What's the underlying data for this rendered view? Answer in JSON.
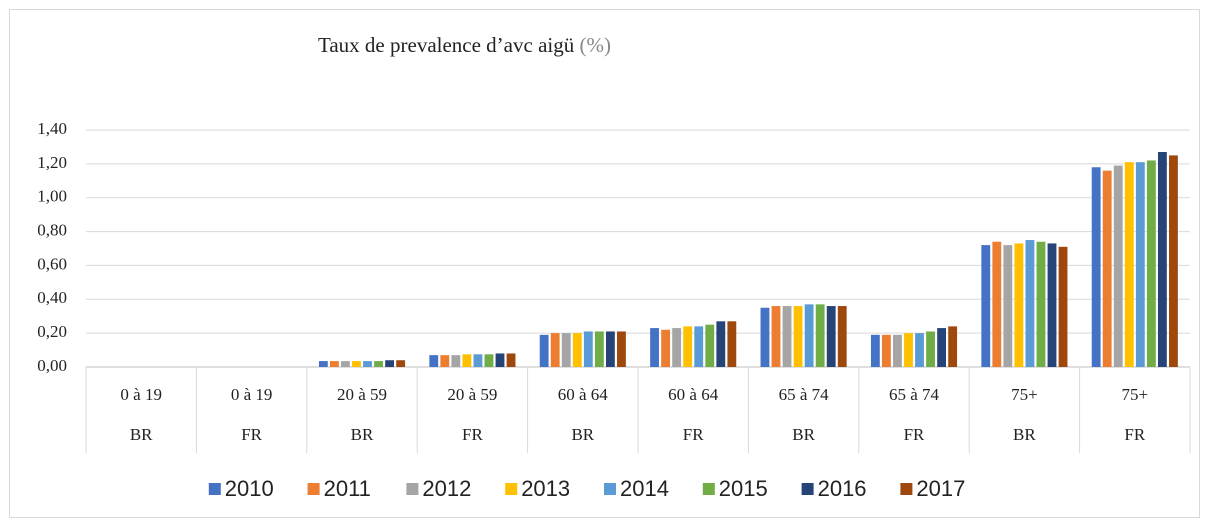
{
  "chart_data": {
    "type": "bar",
    "title": "Taux de prevalence d’avc aigü",
    "title_unit": "(%)",
    "categories": [
      "0 à 19",
      "0 à 19",
      "20 à 59",
      "20 à 59",
      "60 à 64",
      "60 à 64",
      "65 à 74",
      "65 à 74",
      "75+",
      "75+"
    ],
    "subcategories": [
      "BR",
      "FR",
      "BR",
      "FR",
      "BR",
      "FR",
      "BR",
      "FR",
      "BR",
      "FR"
    ],
    "series": [
      {
        "name": "2010",
        "color": "#4472c4",
        "values": [
          0,
          0,
          0.035,
          0.07,
          0.19,
          0.23,
          0.35,
          0.19,
          0.72,
          1.18
        ]
      },
      {
        "name": "2011",
        "color": "#ed7d31",
        "values": [
          0,
          0,
          0.035,
          0.07,
          0.2,
          0.22,
          0.36,
          0.19,
          0.74,
          1.16
        ]
      },
      {
        "name": "2012",
        "color": "#a5a5a5",
        "values": [
          0,
          0,
          0.035,
          0.07,
          0.2,
          0.23,
          0.36,
          0.19,
          0.72,
          1.19
        ]
      },
      {
        "name": "2013",
        "color": "#ffc000",
        "values": [
          0,
          0,
          0.035,
          0.075,
          0.2,
          0.24,
          0.36,
          0.2,
          0.73,
          1.21
        ]
      },
      {
        "name": "2014",
        "color": "#5b9bd5",
        "values": [
          0,
          0,
          0.035,
          0.075,
          0.21,
          0.24,
          0.37,
          0.2,
          0.75,
          1.21
        ]
      },
      {
        "name": "2015",
        "color": "#70ad47",
        "values": [
          0,
          0,
          0.035,
          0.075,
          0.21,
          0.25,
          0.37,
          0.21,
          0.74,
          1.22
        ]
      },
      {
        "name": "2016",
        "color": "#264478",
        "values": [
          0,
          0,
          0.04,
          0.08,
          0.21,
          0.27,
          0.36,
          0.23,
          0.73,
          1.27
        ]
      },
      {
        "name": "2017",
        "color": "#9e480e",
        "values": [
          0,
          0,
          0.04,
          0.08,
          0.21,
          0.27,
          0.36,
          0.24,
          0.71,
          1.25
        ]
      }
    ],
    "ylim": [
      0,
      1.4
    ],
    "yticks": [
      {
        "value": 0,
        "label": "0,00"
      },
      {
        "value": 0.2,
        "label": "0,20"
      },
      {
        "value": 0.4,
        "label": "0,40"
      },
      {
        "value": 0.6,
        "label": "0,60"
      },
      {
        "value": 0.8,
        "label": "0,80"
      },
      {
        "value": 1.0,
        "label": "1,00"
      },
      {
        "value": 1.2,
        "label": "1,20"
      },
      {
        "value": 1.4,
        "label": "1,40"
      }
    ],
    "grid": true,
    "legend": "bottom"
  }
}
